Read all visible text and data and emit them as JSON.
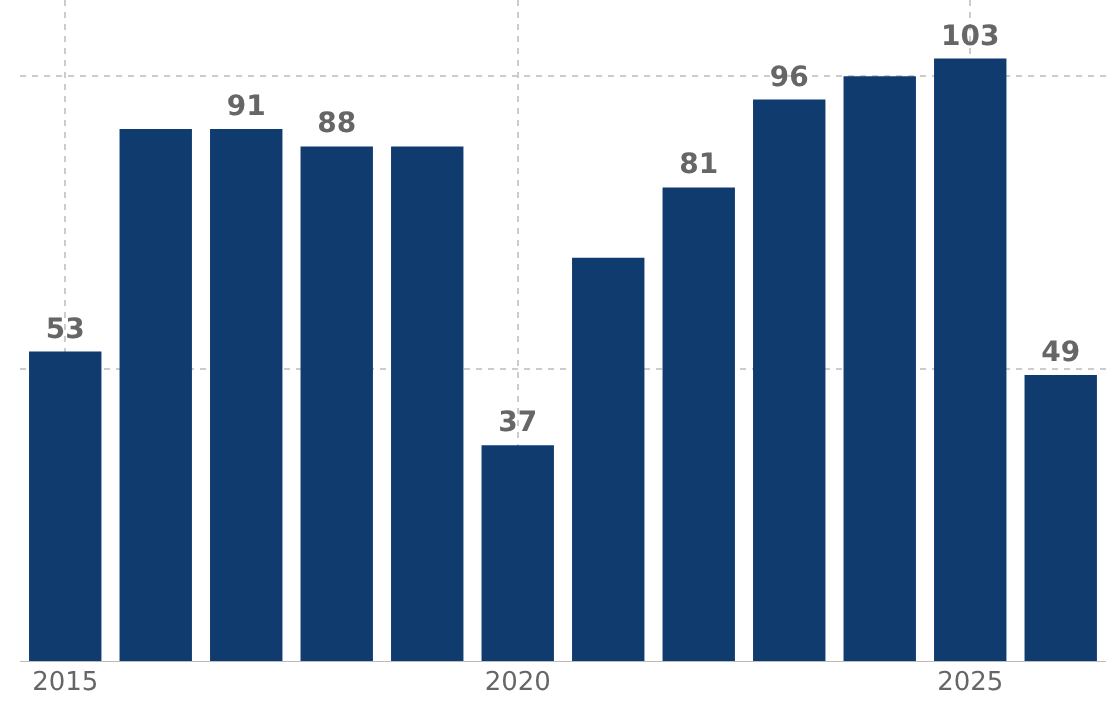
{
  "chart_data": {
    "type": "bar",
    "x": [
      2015,
      2016,
      2017,
      2018,
      2019,
      2020,
      2021,
      2022,
      2023,
      2024,
      2025,
      2026
    ],
    "values": [
      53,
      91,
      91,
      88,
      88,
      37,
      69,
      81,
      96,
      100,
      103,
      49
    ],
    "value_labels": [
      "53",
      null,
      "91",
      "88",
      null,
      "37",
      null,
      "81",
      "96",
      null,
      "103",
      "49"
    ],
    "color": "#0f3b6e",
    "xlim": [
      2014.5,
      2026.5
    ],
    "xticks": [
      2015,
      2020,
      2025
    ],
    "ylim": [
      0,
      113
    ],
    "yticks": [
      {
        "value": 0,
        "label": null
      },
      {
        "value": 50,
        "label": null
      },
      {
        "value": 100,
        "label": null
      }
    ],
    "grid": true,
    "tick_labels": "x"
  }
}
